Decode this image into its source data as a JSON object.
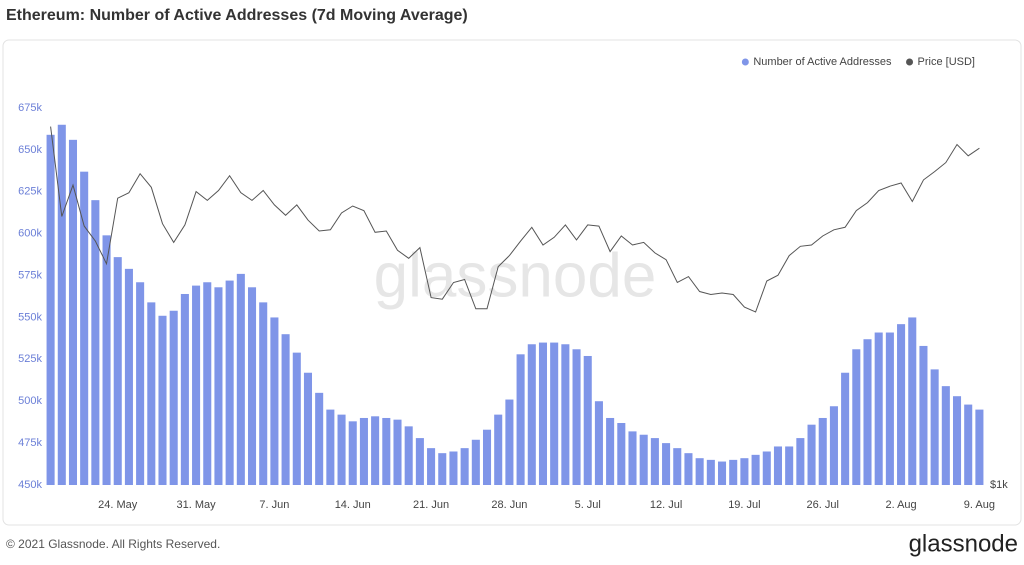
{
  "chart_data": {
    "type": "bar_line",
    "title": "Ethereum: Number of Active Addresses (7d Moving Average)",
    "watermark": "glassnode",
    "footer": "© 2021 Glassnode. All Rights Reserved.",
    "logo": "glassnode",
    "categories": [
      null,
      null,
      null,
      null,
      null,
      null,
      "24. May",
      null,
      null,
      null,
      null,
      null,
      null,
      "31. May",
      null,
      null,
      null,
      null,
      null,
      null,
      "7. Jun",
      null,
      null,
      null,
      null,
      null,
      null,
      "14. Jun",
      null,
      null,
      null,
      null,
      null,
      null,
      "21. Jun",
      null,
      null,
      null,
      null,
      null,
      null,
      "28. Jun",
      null,
      null,
      null,
      null,
      null,
      null,
      "5. Jul",
      null,
      null,
      null,
      null,
      null,
      null,
      "12. Jul",
      null,
      null,
      null,
      null,
      null,
      null,
      "19. Jul",
      null,
      null,
      null,
      null,
      null,
      null,
      "26. Jul",
      null,
      null,
      null,
      null,
      null,
      null,
      "2. Aug",
      null,
      null,
      null,
      null,
      null,
      null,
      "9. Aug"
    ],
    "series": [
      {
        "name": "Number of Active Addresses",
        "type": "bar",
        "color": "#7f95e8",
        "values": [
          659000,
          665000,
          656000,
          637000,
          620000,
          599000,
          586000,
          579000,
          571000,
          559000,
          551000,
          554000,
          564000,
          569000,
          571000,
          568000,
          572000,
          576000,
          568000,
          559000,
          550000,
          540000,
          529000,
          517000,
          505000,
          495000,
          492000,
          488000,
          490000,
          491000,
          490000,
          489000,
          485000,
          478000,
          472000,
          469000,
          470000,
          472000,
          477000,
          483000,
          492000,
          501000,
          528000,
          534000,
          535000,
          535000,
          534000,
          531000,
          527000,
          500000,
          490000,
          487000,
          482000,
          480000,
          478000,
          475000,
          472000,
          469000,
          466000,
          465000,
          464000,
          465000,
          466000,
          468000,
          470000,
          473000,
          473000,
          478000,
          486000,
          490000,
          497000,
          517000,
          531000,
          537000,
          541000,
          541000,
          546000,
          550000,
          533000,
          519000,
          509000,
          503000,
          498000,
          495000
        ]
      },
      {
        "name": "Price [USD]",
        "type": "line",
        "axis": "y2",
        "color": "#555555",
        "values": [
          3380,
          2490,
          2770,
          2410,
          2290,
          2120,
          2650,
          2700,
          2880,
          2750,
          2430,
          2280,
          2420,
          2710,
          2630,
          2720,
          2860,
          2700,
          2630,
          2720,
          2590,
          2500,
          2590,
          2460,
          2370,
          2380,
          2520,
          2580,
          2540,
          2360,
          2370,
          2220,
          2160,
          2240,
          1890,
          1880,
          1990,
          2010,
          1820,
          1820,
          2100,
          2180,
          2290,
          2400,
          2260,
          2320,
          2420,
          2300,
          2420,
          2410,
          2210,
          2330,
          2260,
          2280,
          2200,
          2150,
          1990,
          2030,
          1930,
          1910,
          1920,
          1910,
          1830,
          1800,
          2000,
          2040,
          2180,
          2250,
          2260,
          2330,
          2380,
          2400,
          2540,
          2610,
          2720,
          2760,
          2790,
          2620,
          2820,
          2900,
          2990,
          3180,
          3060,
          3140
        ]
      }
    ],
    "ylim": [
      450000,
      675000
    ],
    "yticks": [
      {
        "value": 450000,
        "label": "450k"
      },
      {
        "value": 475000,
        "label": "475k"
      },
      {
        "value": 500000,
        "label": "500k"
      },
      {
        "value": 525000,
        "label": "525k"
      },
      {
        "value": 550000,
        "label": "550k"
      },
      {
        "value": 575000,
        "label": "575k"
      },
      {
        "value": 600000,
        "label": "600k"
      },
      {
        "value": 625000,
        "label": "625k"
      },
      {
        "value": 650000,
        "label": "650k"
      },
      {
        "value": 675000,
        "label": "675k"
      }
    ],
    "y2lim": [
      1000,
      3600
    ],
    "y2ticks": [
      {
        "value": 1000,
        "label": "$1k"
      }
    ],
    "y2log": true,
    "legend": "top-right"
  }
}
